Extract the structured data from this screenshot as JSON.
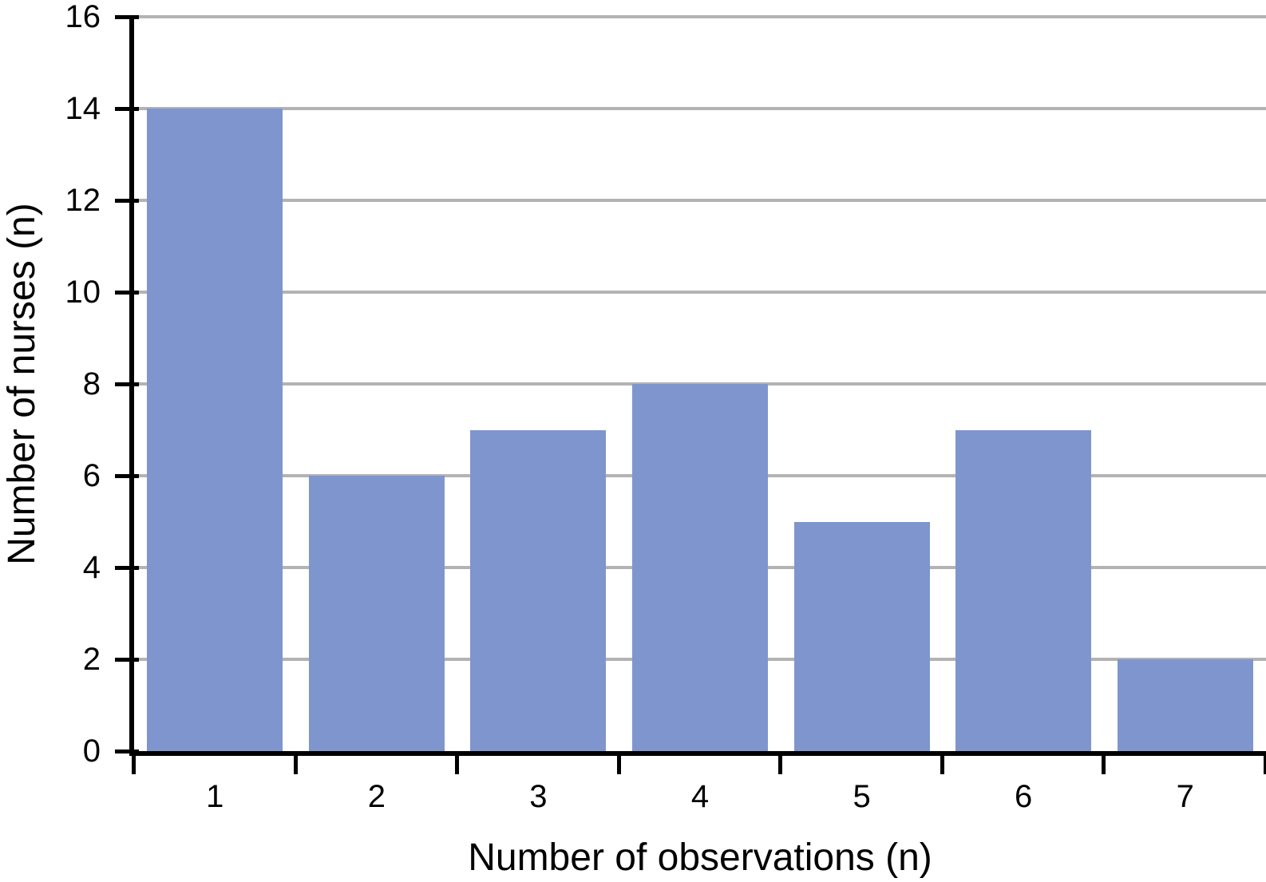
{
  "chart_data": {
    "type": "bar",
    "title": "",
    "xlabel": "Number of observations (n)",
    "ylabel": "Number of nurses (n)",
    "categories": [
      "1",
      "2",
      "3",
      "4",
      "5",
      "6",
      "7"
    ],
    "values": [
      14,
      6,
      7,
      8,
      5,
      7,
      2
    ],
    "series": [
      {
        "name": "Number of nurses",
        "values": [
          14,
          6,
          7,
          8,
          5,
          7,
          2
        ]
      }
    ],
    "ylim": [
      0,
      16
    ],
    "yticks": [
      0,
      2,
      4,
      6,
      8,
      10,
      12,
      14,
      16
    ],
    "grid": "horizontal",
    "legend_position": "none",
    "colors": {
      "bar": "#7E96CD",
      "gridline": "#B3B3B3",
      "axis": "#000000",
      "text": "#000000",
      "background": "#FFFFFF"
    }
  }
}
